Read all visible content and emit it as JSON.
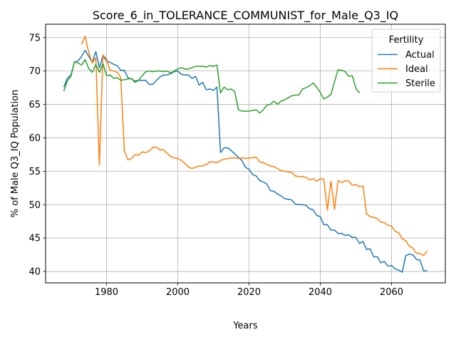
{
  "chart_data": {
    "type": "line",
    "title": "Score_6_in_TOLERANCE_COMMUNIST_for_Male_Q3_IQ",
    "xlabel": "Years",
    "ylabel": "% of Male Q3_IQ Population",
    "xlim": [
      1962.9,
      2075.1
    ],
    "ylim": [
      38.3,
      77.0
    ],
    "xticks": [
      1980,
      2000,
      2020,
      2040,
      2060
    ],
    "yticks": [
      40,
      45,
      50,
      55,
      60,
      65,
      70,
      75
    ],
    "grid": true,
    "legend": {
      "title": "Fertility",
      "placement": "top-right"
    },
    "series": [
      {
        "name": "Actual",
        "color": "#1f77b4",
        "x": [
          1968,
          1969,
          1970,
          1971,
          1972,
          1973,
          1974,
          1975,
          1976,
          1977,
          1978,
          1979,
          1980,
          1981,
          1982,
          1983,
          1984,
          1985,
          1986,
          1987,
          1988,
          1989,
          1990,
          1991,
          1992,
          1993,
          1994,
          1995,
          1996,
          1997,
          1998,
          1999,
          2000,
          2001,
          2002,
          2003,
          2004,
          2005,
          2006,
          2007,
          2008,
          2009,
          2010,
          2011,
          2012,
          2013,
          2014,
          2015,
          2016,
          2017,
          2018,
          2019,
          2020,
          2021,
          2022,
          2023,
          2024,
          2025,
          2026,
          2027,
          2028,
          2029,
          2030,
          2031,
          2032,
          2033,
          2034,
          2035,
          2036,
          2037,
          2038,
          2039,
          2040,
          2041,
          2042,
          2043,
          2044,
          2045,
          2046,
          2047,
          2048,
          2049,
          2050,
          2051,
          2052,
          2053,
          2054,
          2055,
          2056,
          2057,
          2058,
          2059,
          2060,
          2061,
          2062,
          2063,
          2064,
          2065,
          2066,
          2067,
          2068,
          2069,
          2070
        ],
        "values": [
          67.6,
          68.9,
          69.4,
          71.3,
          71.5,
          72.2,
          73.1,
          72.2,
          71.3,
          72.9,
          70.5,
          72.3,
          71.5,
          71.3,
          71.0,
          70.8,
          70.1,
          70.1,
          69.0,
          68.8,
          68.5,
          68.6,
          68.6,
          68.6,
          68.0,
          68.0,
          68.6,
          69.1,
          69.4,
          69.4,
          69.6,
          69.9,
          70.0,
          69.5,
          69.4,
          69.4,
          68.9,
          69.2,
          67.9,
          68.3,
          67.2,
          67.3,
          67.1,
          67.6,
          57.8,
          58.5,
          58.5,
          58.1,
          57.6,
          57.1,
          56.6,
          55.6,
          55.3,
          54.5,
          54.3,
          53.6,
          53.4,
          53.1,
          52.1,
          52.0,
          51.6,
          51.3,
          50.9,
          50.8,
          50.7,
          50.1,
          50.0,
          50.0,
          49.9,
          49.4,
          49.2,
          48.4,
          48.2,
          47.0,
          47.0,
          46.2,
          46.2,
          45.7,
          45.7,
          45.4,
          45.5,
          45.1,
          45.1,
          44.2,
          44.5,
          43.3,
          43.4,
          42.2,
          42.2,
          41.3,
          41.5,
          40.8,
          40.9,
          40.4,
          40.2,
          39.9,
          42.4,
          42.6,
          42.5,
          41.8,
          41.7,
          40.1,
          40.1
        ]
      },
      {
        "name": "Ideal",
        "color": "#ff7f0e",
        "x": [
          1973,
          1974,
          1975,
          1976,
          1977,
          1978,
          1979,
          1980,
          1981,
          1982,
          1983,
          1984,
          1985,
          1986,
          1987,
          1988,
          1989,
          1990,
          1991,
          1992,
          1993,
          1994,
          1995,
          1996,
          1997,
          1998,
          1999,
          2000,
          2001,
          2002,
          2003,
          2004,
          2005,
          2006,
          2007,
          2008,
          2009,
          2010,
          2011,
          2012,
          2013,
          2014,
          2015,
          2016,
          2017,
          2018,
          2019,
          2020,
          2021,
          2022,
          2023,
          2024,
          2025,
          2026,
          2027,
          2028,
          2029,
          2030,
          2031,
          2032,
          2033,
          2034,
          2035,
          2036,
          2037,
          2038,
          2039,
          2040,
          2041,
          2042,
          2043,
          2044,
          2045,
          2046,
          2047,
          2048,
          2049,
          2050,
          2051,
          2052,
          2053,
          2054,
          2055,
          2056,
          2057,
          2058,
          2059,
          2060,
          2061,
          2062,
          2063,
          2064,
          2065,
          2066,
          2067,
          2068,
          2069,
          2070
        ],
        "values": [
          74.0,
          75.2,
          72.8,
          71.2,
          72.0,
          55.9,
          72.4,
          71.8,
          70.1,
          70.0,
          69.8,
          69.0,
          58.1,
          56.7,
          56.9,
          57.5,
          57.4,
          57.9,
          57.8,
          58.0,
          58.6,
          58.6,
          58.2,
          58.2,
          57.7,
          57.2,
          57.0,
          56.9,
          56.6,
          56.2,
          55.6,
          55.4,
          55.6,
          55.8,
          55.8,
          56.0,
          56.4,
          56.4,
          56.3,
          56.6,
          56.8,
          56.9,
          57.0,
          57.0,
          56.9,
          57.0,
          56.9,
          57.0,
          57.0,
          57.1,
          56.4,
          56.3,
          56.0,
          55.8,
          55.7,
          55.4,
          55.1,
          55.0,
          54.9,
          54.8,
          54.3,
          54.2,
          54.2,
          54.1,
          53.7,
          53.9,
          53.5,
          53.9,
          53.8,
          49.2,
          53.5,
          49.3,
          53.6,
          53.3,
          53.6,
          53.5,
          52.9,
          53.0,
          52.7,
          52.8,
          48.6,
          48.2,
          48.1,
          47.9,
          47.4,
          47.3,
          46.9,
          46.8,
          46.0,
          45.8,
          44.9,
          44.6,
          43.8,
          43.5,
          42.7,
          42.7,
          42.4,
          43.1
        ]
      },
      {
        "name": "Sterile",
        "color": "#2ca02c",
        "x": [
          1968,
          1969,
          1970,
          1971,
          1972,
          1973,
          1974,
          1975,
          1976,
          1977,
          1978,
          1979,
          1980,
          1981,
          1982,
          1983,
          1984,
          1985,
          1986,
          1987,
          1988,
          1989,
          1990,
          1991,
          1992,
          1993,
          1994,
          1995,
          1996,
          1997,
          1998,
          1999,
          2000,
          2001,
          2002,
          2003,
          2004,
          2005,
          2006,
          2007,
          2008,
          2009,
          2010,
          2011,
          2012,
          2013,
          2014,
          2015,
          2016,
          2017,
          2018,
          2019,
          2020,
          2021,
          2022,
          2023,
          2024,
          2025,
          2026,
          2027,
          2028,
          2029,
          2030,
          2031,
          2032,
          2033,
          2034,
          2035,
          2036,
          2037,
          2038,
          2039,
          2040,
          2041,
          2042,
          2043,
          2044,
          2045,
          2046,
          2047,
          2048,
          2049,
          2050,
          2051
        ],
        "values": [
          67.0,
          68.5,
          69.2,
          71.4,
          71.2,
          70.9,
          71.7,
          70.4,
          69.8,
          71.0,
          69.8,
          71.1,
          69.3,
          69.4,
          68.9,
          69.0,
          68.6,
          68.7,
          68.8,
          68.9,
          68.3,
          68.6,
          69.3,
          69.9,
          70.0,
          69.9,
          70.0,
          70.0,
          69.9,
          70.0,
          69.7,
          70.0,
          70.3,
          70.5,
          70.3,
          70.3,
          70.5,
          70.7,
          70.7,
          70.7,
          70.6,
          70.8,
          70.7,
          70.9,
          66.7,
          67.6,
          67.2,
          67.3,
          66.9,
          64.2,
          64.0,
          64.0,
          64.0,
          64.1,
          64.2,
          63.7,
          64.2,
          64.9,
          65.0,
          65.5,
          65.0,
          65.5,
          65.7,
          66.0,
          66.3,
          66.4,
          66.4,
          67.3,
          67.5,
          67.8,
          68.2,
          67.6,
          66.8,
          65.8,
          66.1,
          66.5,
          68.4,
          70.2,
          70.1,
          69.9,
          69.2,
          69.3,
          67.4,
          66.7
        ]
      }
    ]
  }
}
